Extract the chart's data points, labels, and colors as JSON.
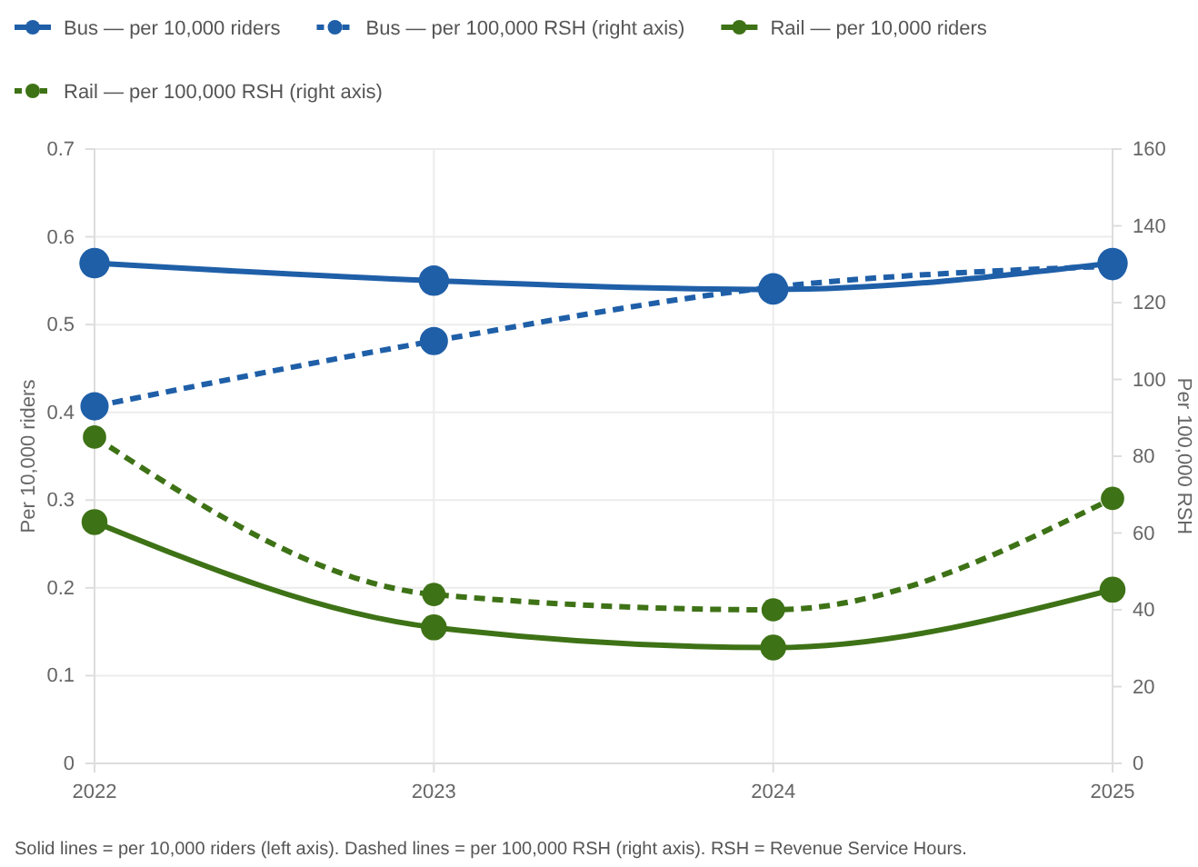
{
  "chart_data": {
    "type": "line",
    "categories": [
      "2022",
      "2023",
      "2024",
      "2025"
    ],
    "series": [
      {
        "name": "Bus — per 10,000 riders",
        "color": "#1f5fa8",
        "values": [
          0.57,
          0.55,
          0.54,
          0.57
        ],
        "line_style": "solid"
      },
      {
        "name": "Bus — per 100,000 RSH (right axis)",
        "color": "#1f5fa8",
        "values": [
          93,
          110,
          124,
          129.5
        ],
        "axis": "y2",
        "line_style": "dashed"
      },
      {
        "name": "Rail — per 10,000 riders",
        "color": "#3e7216",
        "values": [
          0.275,
          0.155,
          0.132,
          0.198
        ],
        "line_style": "solid"
      },
      {
        "name": "Rail — per 100,000 RSH (right axis)",
        "color": "#3e7216",
        "values": [
          85,
          44,
          40,
          69
        ],
        "axis": "y2",
        "line_style": "dashed"
      }
    ],
    "ylabel": "Per 10,000 riders",
    "y2label": "Per 100,000 RSH",
    "ylim": [
      0,
      0.7
    ],
    "yticks": [
      0,
      0.1,
      0.2,
      0.3,
      0.4,
      0.5,
      0.6,
      0.7
    ],
    "y2lim": [
      0,
      160
    ],
    "y2ticks": [
      0,
      20,
      40,
      60,
      80,
      100,
      120,
      140,
      160
    ],
    "grid": true,
    "legend": "top",
    "marker": "circle",
    "annotations": [
      "Solid lines = per 10,000 riders (left axis). Dashed lines = per 100,000 RSH (right axis). RSH = Revenue Service Hours."
    ]
  }
}
